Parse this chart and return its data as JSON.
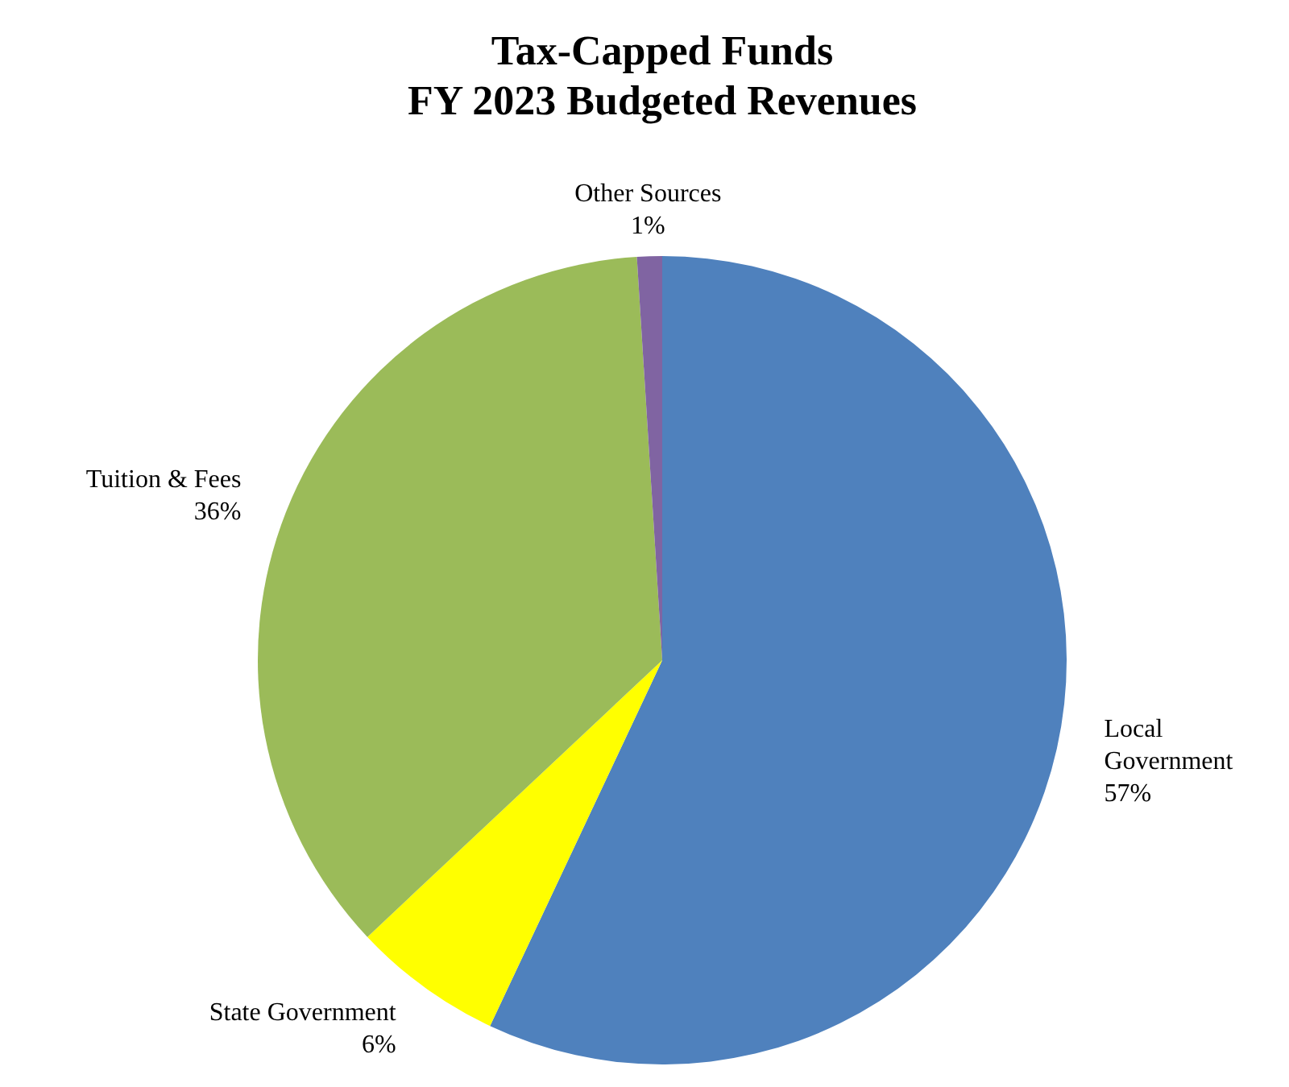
{
  "chart_data": {
    "type": "pie",
    "title": "Tax-Capped Funds\nFY 2023 Budgeted Revenues",
    "categories": [
      "Local Government",
      "State Government",
      "Tuition & Fees",
      "Other Sources"
    ],
    "values": [
      57,
      6,
      36,
      1
    ],
    "colors": [
      "#4f81bd",
      "#ffff00",
      "#9bbb59",
      "#8064a2"
    ],
    "value_labels": [
      "57%",
      "6%",
      "36%",
      "1%"
    ]
  }
}
